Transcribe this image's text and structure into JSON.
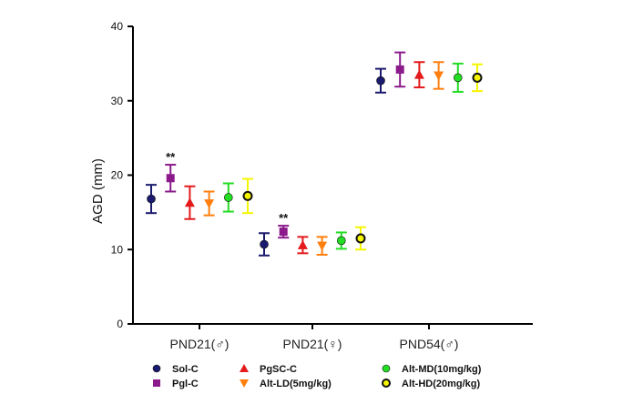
{
  "chart_data": {
    "type": "scatter",
    "ylabel": "AGD (mm)",
    "ylim": [
      0,
      40
    ],
    "yticks": [
      0,
      10,
      20,
      30,
      40
    ],
    "categories": [
      "PND21(♂)",
      "PND21(♀)",
      "PND54(♂)"
    ],
    "series": [
      {
        "name": "Sol-C",
        "color": "#1a1a6e",
        "marker": "circle",
        "values": [
          16.8,
          10.7,
          32.7
        ],
        "errors": [
          1.9,
          1.5,
          1.6
        ]
      },
      {
        "name": "Pgl-C",
        "color": "#8b1a8b",
        "marker": "square",
        "values": [
          19.6,
          12.4,
          34.2
        ],
        "errors": [
          1.8,
          0.8,
          2.3
        ]
      },
      {
        "name": "PgSC-C",
        "color": "#e41a1c",
        "marker": "triangle-up",
        "values": [
          16.3,
          10.6,
          33.5
        ],
        "errors": [
          2.2,
          1.1,
          1.7
        ]
      },
      {
        "name": "Alt-LD(5mg/kg)",
        "color": "#ff7f0e",
        "marker": "triangle-down",
        "values": [
          16.2,
          10.5,
          33.4
        ],
        "errors": [
          1.6,
          1.2,
          1.8
        ]
      },
      {
        "name": "Alt-MD(10mg/kg)",
        "color": "#22dd22",
        "marker": "circle",
        "values": [
          17.0,
          11.2,
          33.1
        ],
        "errors": [
          1.9,
          1.1,
          1.9
        ]
      },
      {
        "name": "Alt-HD(20mg/kg)",
        "color": "#f5f500",
        "marker": "circle-open",
        "values": [
          17.2,
          11.5,
          33.1
        ],
        "errors": [
          2.3,
          1.5,
          1.8
        ]
      }
    ],
    "annotations": [
      {
        "text": "**",
        "category": "PND21(♂)",
        "series": "Pgl-C"
      },
      {
        "text": "**",
        "category": "PND21(♀)",
        "series": "Pgl-C"
      }
    ],
    "legend_position": "bottom",
    "grid": false
  }
}
